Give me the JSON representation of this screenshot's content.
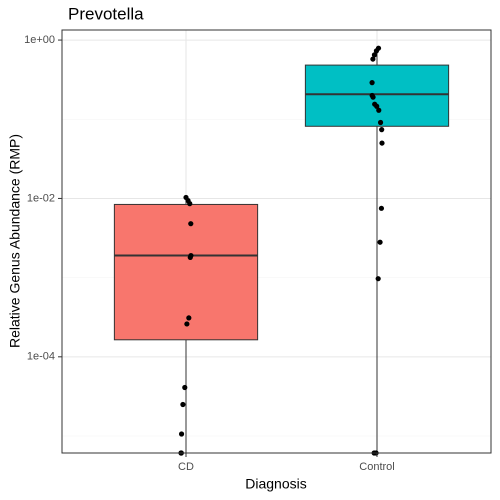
{
  "chart_data": {
    "type": "boxplot",
    "title": "Prevotella",
    "x_label": "Diagnosis",
    "y_label": "Relative Genus Abundance (RMP)",
    "categories": [
      "CD",
      "Control"
    ],
    "colors": [
      "#F8766D",
      "#00BFC4"
    ],
    "boxes": [
      {
        "whisker_low": 6.1e-06,
        "q1": 0.000164,
        "median": 0.0019,
        "q3": 0.0084,
        "whisker_high": 0.0103
      },
      {
        "whisker_low": 6.1e-06,
        "q1": 0.0815,
        "median": 0.207,
        "q3": 0.483,
        "whisker_high": 0.79
      }
    ],
    "points": [
      [
        0.0103,
        0.0094,
        0.0086,
        0.0048,
        0.0019,
        0.0018,
        0.00031,
        0.00026,
        4.1e-05,
        2.5e-05,
        1.06e-05,
        6.1e-06,
        6.1e-06
      ],
      [
        0.79,
        0.73,
        0.65,
        0.575,
        0.29,
        0.2,
        0.19,
        0.155,
        0.146,
        0.13,
        0.091,
        0.074,
        0.05,
        0.0075,
        0.0028,
        0.00097,
        6.1e-06,
        6.1e-06
      ]
    ],
    "ylim": [
      6.1e-06,
      1.34
    ],
    "log_y": true,
    "yticks": [
      {
        "value": 1,
        "label": "1e+00"
      },
      {
        "value": 0.01,
        "label": "1e-02"
      },
      {
        "value": 0.0001,
        "label": "1e-04"
      }
    ],
    "y_minor_grid": [
      0.1,
      0.001,
      1e-05
    ],
    "grid": true
  }
}
